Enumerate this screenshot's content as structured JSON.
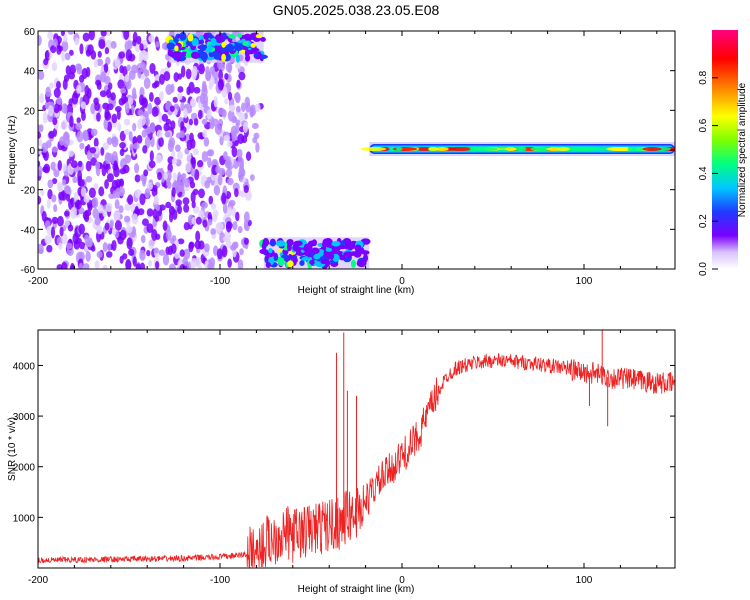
{
  "title": "GN05.2025.038.23.05.E08",
  "chart_data": [
    {
      "type": "heatmap",
      "xlabel": "Height of straight line (km)",
      "ylabel": "Frequency (Hz)",
      "xlim": [
        -200,
        150
      ],
      "ylim": [
        -60,
        60
      ],
      "x_ticks": [
        -200,
        -100,
        0,
        100
      ],
      "y_ticks": [
        -60,
        -40,
        -20,
        0,
        20,
        40,
        60
      ],
      "colorbar": {
        "label": "Normalized spectral amplitude",
        "range": [
          0,
          1
        ],
        "ticks": [
          0.0,
          0.2,
          0.4,
          0.6,
          0.8
        ],
        "tick_labels": [
          "0.0",
          "0.2",
          "0.4",
          "0.6",
          "0.8"
        ],
        "colormap": [
          "#ffffff",
          "#7a00ff",
          "#1e3cff",
          "#00c8ff",
          "#00ff80",
          "#80ff00",
          "#ffff00",
          "#ff8000",
          "#ff0000",
          "#ff0080"
        ]
      },
      "features": [
        {
          "name": "noise",
          "x": [
            -200,
            -85
          ],
          "y": [
            -60,
            60
          ],
          "amplitude": 0.12
        },
        {
          "name": "upper-band",
          "x": [
            -128,
            -76
          ],
          "y": [
            46,
            58
          ],
          "amplitude": 0.45
        },
        {
          "name": "lower-band",
          "x": [
            -76,
            -18
          ],
          "y": [
            -58,
            -46
          ],
          "amplitude": 0.45
        },
        {
          "name": "zero-band",
          "x": [
            -18,
            150
          ],
          "y": [
            -2,
            3
          ],
          "amplitude": 0.8
        }
      ]
    },
    {
      "type": "line",
      "xlabel": "Height of straight line (km)",
      "ylabel": "SNR (10 * v/v)",
      "xlim": [
        -200,
        150
      ],
      "ylim": [
        0,
        4700
      ],
      "x_ticks": [
        -200,
        -100,
        0,
        100
      ],
      "y_ticks": [
        1000,
        2000,
        3000,
        4000
      ],
      "grid": false,
      "series": [
        {
          "color": "#ee2222",
          "x": [
            -200,
            -180,
            -160,
            -140,
            -120,
            -100,
            -90,
            -80,
            -75,
            -70,
            -65,
            -60,
            -55,
            -50,
            -45,
            -40,
            -35,
            -30,
            -25,
            -20,
            -15,
            -10,
            -5,
            0,
            5,
            10,
            15,
            20,
            25,
            30,
            40,
            50,
            60,
            70,
            80,
            90,
            95,
            100,
            105,
            110,
            115,
            120,
            130,
            140,
            150
          ],
          "y": [
            150,
            160,
            170,
            180,
            190,
            220,
            250,
            300,
            500,
            600,
            700,
            650,
            700,
            750,
            800,
            850,
            900,
            1000,
            1100,
            1300,
            1600,
            1800,
            2000,
            2200,
            2400,
            2700,
            3100,
            3500,
            3800,
            3950,
            4050,
            4100,
            4080,
            4050,
            4000,
            3950,
            3900,
            3850,
            3850,
            3800,
            3750,
            3750,
            3700,
            3650,
            3650
          ]
        }
      ],
      "spikes": [
        {
          "x": -36,
          "y": 4250
        },
        {
          "x": -32,
          "y": 4650
        },
        {
          "x": -30,
          "y": 3500
        },
        {
          "x": -25,
          "y": 3400
        },
        {
          "x": 110,
          "y": 4700
        },
        {
          "x": 113,
          "y": 2800
        },
        {
          "x": 103,
          "y": 3200
        }
      ]
    }
  ]
}
